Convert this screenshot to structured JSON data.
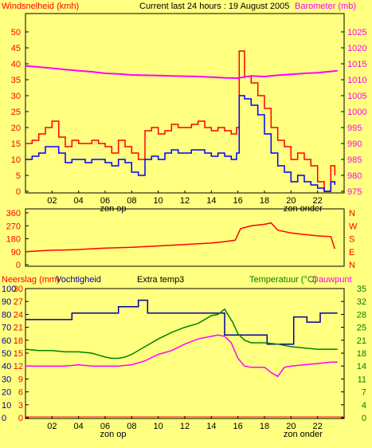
{
  "header": {
    "left_axis_title": "Windsnelheid (kmh)",
    "center_title": "Current last 24 hours : 19 August 2005",
    "right_axis_title": "Barometer (mb)"
  },
  "bottom_header": {
    "rain_title": "Neerslag (mm)",
    "humidity_title": "Vochtigheid",
    "extra_title": "Extra temp3",
    "temp_title": "Temperatuur (°C)",
    "dew_title": "Dauwpunt"
  },
  "time_axis": {
    "ticks": [
      "02",
      "04",
      "06",
      "08",
      "10",
      "12",
      "14",
      "16",
      "18",
      "20",
      "22"
    ],
    "sunrise": "zon op",
    "sunset": "zon onder"
  },
  "colors": {
    "background": "#ffff80",
    "plot_bg": "#ffff80",
    "wind_gust": "#ff0000",
    "wind_avg": "#0000ff",
    "barometer": "#ff00ff",
    "direction": "#ff0000",
    "humidity": "#000099",
    "temperature": "#008000",
    "dewpoint": "#ff00ff",
    "green_axis": "#008000"
  },
  "chart_data": [
    {
      "type": "line",
      "name": "wind_barometer",
      "x_range": [
        0,
        24
      ],
      "y_left": {
        "label": "Windsnelheid (kmh)",
        "ylim": [
          0,
          50
        ],
        "ticks": [
          "0",
          "5",
          "10",
          "15",
          "20",
          "25",
          "30",
          "35",
          "40",
          "45",
          "50"
        ]
      },
      "y_right": {
        "label": "Barometer (mb)",
        "ylim": [
          975,
          1025
        ],
        "ticks": [
          "975",
          "980",
          "985",
          "990",
          "995",
          "1000",
          "1005",
          "1010",
          "1015",
          "1020",
          "1025"
        ]
      },
      "series": [
        {
          "axis": "left",
          "x": [
            0,
            0.5,
            1,
            1.5,
            2,
            2.5,
            3,
            3.5,
            4,
            4.5,
            5,
            5.5,
            6,
            6.5,
            7,
            7.5,
            8,
            8.5,
            9,
            9.5,
            10,
            10.5,
            11,
            11.5,
            12,
            12.5,
            13,
            13.5,
            14,
            14.5,
            15,
            15.5,
            15.9,
            16.1,
            16.5,
            17,
            17.5,
            18,
            18.5,
            19,
            19.5,
            20,
            20.5,
            21,
            21.5,
            22,
            22.5,
            23,
            23.3
          ],
          "y": [
            15,
            16,
            18,
            20,
            22,
            17,
            14,
            16,
            15,
            15,
            16,
            15,
            14,
            12,
            16,
            14,
            12,
            10,
            19,
            20,
            18,
            19,
            21,
            20,
            20,
            21,
            22,
            20,
            19,
            20,
            19,
            18,
            20,
            44,
            36,
            34,
            30,
            26,
            20,
            16,
            14,
            10,
            12,
            10,
            8,
            3,
            0,
            8,
            5
          ]
        },
        {
          "axis": "left",
          "x": [
            0,
            0.5,
            1,
            1.5,
            2,
            2.5,
            3,
            3.5,
            4,
            4.5,
            5,
            5.5,
            6,
            6.5,
            7,
            7.5,
            8,
            8.5,
            9,
            9.5,
            10,
            10.5,
            11,
            11.5,
            12,
            12.5,
            13,
            13.5,
            14,
            14.5,
            15,
            15.5,
            15.9,
            16.1,
            16.5,
            17,
            17.5,
            18,
            18.5,
            19,
            19.5,
            20,
            20.5,
            21,
            21.5,
            22,
            22.5,
            23,
            23.3
          ],
          "y": [
            10,
            11,
            12,
            14,
            14,
            12,
            9,
            10,
            10,
            9,
            10,
            10,
            9,
            8,
            10,
            9,
            6,
            5,
            10,
            11,
            10,
            12,
            13,
            12,
            12,
            13,
            13,
            12,
            11,
            12,
            11,
            10,
            12,
            30,
            29,
            27,
            24,
            18,
            12,
            8,
            6,
            3,
            5,
            3,
            2,
            1,
            0,
            3,
            2
          ]
        },
        {
          "axis": "right",
          "x": [
            0,
            1,
            2,
            3,
            4,
            5,
            6,
            7,
            8,
            9,
            10,
            11,
            12,
            13,
            14,
            15,
            16,
            17,
            18,
            19,
            20,
            21,
            22,
            23,
            23.5
          ],
          "y": [
            1014.3,
            1014,
            1013.6,
            1013.2,
            1012.8,
            1012.5,
            1012,
            1011.8,
            1011.5,
            1011.4,
            1011.3,
            1011.2,
            1011.1,
            1011,
            1010.8,
            1010.6,
            1010.5,
            1011.2,
            1011,
            1011.4,
            1011.7,
            1012,
            1012.2,
            1012.6,
            1012.8
          ]
        }
      ]
    },
    {
      "type": "line",
      "name": "wind_direction",
      "x_range": [
        0,
        24
      ],
      "y_left": {
        "ylim": [
          0,
          360
        ],
        "ticks": [
          "0",
          "90",
          "180",
          "270",
          "360"
        ]
      },
      "y_right_labels": [
        "N",
        "W",
        "S",
        "E",
        "N"
      ],
      "series": [
        {
          "x": [
            0,
            1,
            2,
            3,
            4,
            5,
            6,
            7,
            8,
            9,
            10,
            11,
            12,
            13,
            14,
            15,
            15.8,
            16.2,
            17,
            18,
            18.5,
            19,
            20,
            21,
            22,
            23,
            23.3
          ],
          "y": [
            90,
            95,
            100,
            102,
            105,
            110,
            115,
            118,
            120,
            125,
            130,
            135,
            140,
            145,
            150,
            160,
            170,
            250,
            270,
            280,
            290,
            240,
            220,
            210,
            200,
            195,
            110
          ]
        }
      ]
    },
    {
      "type": "line",
      "name": "humidity_temperature",
      "x_range": [
        0,
        24
      ],
      "y_left_rain": {
        "label": "Neerslag (mm)",
        "ticks": [
          "0",
          "3",
          "6",
          "9",
          "12",
          "15",
          "18",
          "21",
          "24",
          "27",
          "30"
        ]
      },
      "y_left_humidity": {
        "label": "Vochtigheid",
        "ylim": [
          0,
          100
        ],
        "ticks": [
          "0",
          "10",
          "20",
          "30",
          "40",
          "50",
          "60",
          "70",
          "80",
          "90",
          "100"
        ]
      },
      "y_right_temp": {
        "label": "Temperatuur (°C)",
        "ticks": [
          "0",
          "4",
          "7",
          "11",
          "14",
          "18",
          "21",
          "25",
          "28",
          "32",
          "35"
        ]
      },
      "series": [
        {
          "name": "Vochtigheid",
          "axis": "humidity",
          "x": [
            0,
            3.5,
            3.5,
            7,
            7,
            8.5,
            8.5,
            9.2,
            9.2,
            15,
            15,
            18.2,
            18.2,
            20.2,
            20.2,
            21.2,
            21.2,
            22.2,
            22.2,
            23.5
          ],
          "y": [
            76,
            76,
            81,
            81,
            86,
            86,
            91,
            91,
            81,
            81,
            64,
            64,
            57,
            57,
            78,
            78,
            74,
            74,
            81,
            81
          ]
        },
        {
          "name": "Temperatuur (°C)",
          "axis": "humidity",
          "x": [
            0,
            1,
            2,
            3,
            4,
            5,
            6,
            6.5,
            7,
            7.5,
            8,
            9,
            10,
            11,
            12,
            13,
            14,
            14.5,
            15,
            15.3,
            15.6,
            16,
            16.5,
            17,
            18,
            19,
            20,
            21,
            22,
            23,
            23.5
          ],
          "y": [
            53,
            52,
            52,
            51,
            51,
            50,
            47,
            46,
            46,
            47,
            49,
            55,
            61,
            66,
            70,
            73,
            79,
            80,
            84,
            79,
            74,
            65,
            60,
            58,
            58,
            57,
            55,
            54,
            53,
            53,
            53
          ]
        },
        {
          "name": "Dauwpunt",
          "axis": "humidity",
          "x": [
            0,
            1,
            2,
            3,
            4,
            5,
            6,
            7,
            8,
            9,
            10,
            11,
            12,
            13,
            14,
            14.5,
            15,
            15.5,
            16,
            16.5,
            17,
            18,
            18.5,
            19,
            19.5,
            20,
            21,
            22,
            23,
            23.5
          ],
          "y": [
            40,
            40,
            40,
            40,
            41,
            40,
            40,
            40,
            41,
            44,
            49,
            52,
            57,
            61,
            63,
            64,
            63,
            58,
            46,
            40,
            39,
            39,
            35,
            32,
            39,
            40,
            41,
            42,
            43,
            43
          ]
        }
      ]
    }
  ]
}
